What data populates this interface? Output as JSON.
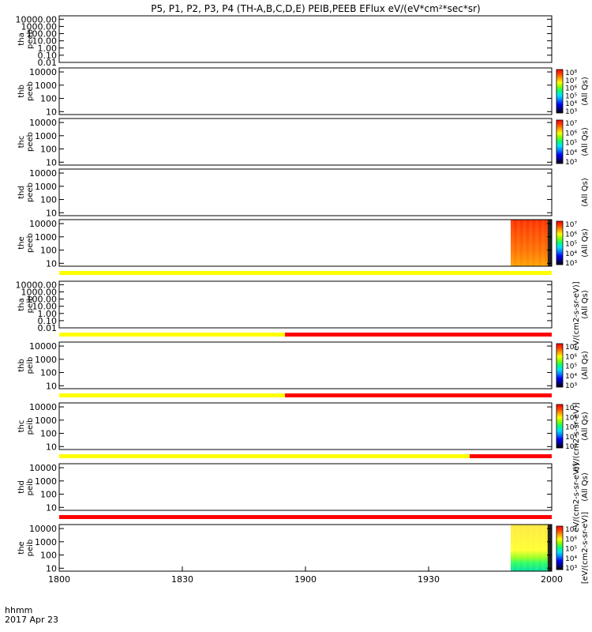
{
  "chart_data": {
    "type": "heatmap",
    "title": "P5, P1, P2, P3, P4 (TH-A,B,C,D,E) PEIB,PEEB EFlux eV/(eV*cm²*sec*sr)",
    "date_label": "2017 Apr 23",
    "time_label": "hhmm",
    "x_ticks": [
      "1800",
      "1830",
      "1900",
      "1930",
      "2000"
    ],
    "xlim": [
      "18:00",
      "20:00"
    ],
    "yscale": "log",
    "colors": {
      "yellow": "#ffff00",
      "red": "#ff0000",
      "orange": "#ff8c00",
      "green": "#30d060"
    },
    "panels": [
      {
        "name": "tha peeb",
        "line1": "tha",
        "line2": "peeb",
        "ylim": [
          0.01,
          30000
        ],
        "y_ticks": [
          "10000.00",
          "1000.00",
          "100.00",
          "10.00",
          "1.00",
          "0.10",
          "0.01"
        ],
        "has_colorbar": false,
        "has_data": false
      },
      {
        "name": "thb peeb",
        "line1": "thb",
        "line2": "peeb",
        "ylim": [
          6,
          20000
        ],
        "y_ticks": [
          "10000",
          "1000",
          "100",
          "10"
        ],
        "has_colorbar": true,
        "cbar_ticks": [
          "10⁸",
          "10⁷",
          "10⁶",
          "10⁵",
          "10⁴",
          "10³"
        ],
        "cbar_label": "(All Qs)",
        "has_data": false
      },
      {
        "name": "thc peeb",
        "line1": "thc",
        "line2": "peeb",
        "ylim": [
          6,
          20000
        ],
        "y_ticks": [
          "10000",
          "1000",
          "100",
          "10"
        ],
        "has_colorbar": true,
        "cbar_ticks": [
          "10⁷",
          "10⁶",
          "10⁵",
          "10⁴",
          "10³"
        ],
        "cbar_label": "(All Qs)",
        "has_data": false
      },
      {
        "name": "thd peeb",
        "line1": "thd",
        "line2": "peeb",
        "ylim": [
          6,
          20000
        ],
        "y_ticks": [
          "10000",
          "1000",
          "100",
          "10"
        ],
        "has_colorbar": false,
        "cbar_label": "(All Qs)",
        "has_data": false
      },
      {
        "name": "the peeb",
        "line1": "the",
        "line2": "peeb",
        "ylim": [
          6,
          20000
        ],
        "y_ticks": [
          "10000",
          "1000",
          "100",
          "10"
        ],
        "has_colorbar": true,
        "cbar_ticks": [
          "10⁷",
          "10⁶",
          "10⁵",
          "10⁴",
          "10³"
        ],
        "cbar_label": "(All Qs)",
        "has_data": true,
        "data_start": "19:50",
        "data_end": "19:59",
        "data_colors": "orange-red",
        "flag_bar": [
          {
            "from": "18:00",
            "to": "20:00",
            "color": "yellow"
          }
        ]
      },
      {
        "name": "tha peib",
        "line1": "tha",
        "line2": "peib",
        "ylim": [
          0.01,
          30000
        ],
        "y_ticks": [
          "10000.00",
          "1000.00",
          "100.00",
          "10.00",
          "1.00",
          "0.10",
          "0.01"
        ],
        "has_colorbar": false,
        "cbar_label": "(All Qs)",
        "has_data": false,
        "flag_bar": [
          {
            "from": "18:00",
            "to": "18:55",
            "color": "yellow"
          },
          {
            "from": "18:55",
            "to": "20:00",
            "color": "red"
          }
        ]
      },
      {
        "name": "thb peib",
        "line1": "thb",
        "line2": "peib",
        "ylim": [
          6,
          20000
        ],
        "y_ticks": [
          "10000",
          "1000",
          "100",
          "10"
        ],
        "has_colorbar": true,
        "cbar_ticks": [
          "10⁷",
          "10⁶",
          "10⁵",
          "10⁴",
          "10³"
        ],
        "cbar_label": "(All Qs)",
        "has_data": false,
        "flag_bar": [
          {
            "from": "18:00",
            "to": "18:55",
            "color": "yellow"
          },
          {
            "from": "18:55",
            "to": "20:00",
            "color": "red"
          }
        ]
      },
      {
        "name": "thc peib",
        "line1": "thc",
        "line2": "peib",
        "ylim": [
          6,
          20000
        ],
        "y_ticks": [
          "10000",
          "1000",
          "100",
          "10"
        ],
        "has_colorbar": true,
        "cbar_ticks": [
          "10⁷",
          "10⁶",
          "10⁵",
          "10⁴",
          "10³"
        ],
        "cbar_label": "(All Qs)",
        "has_data": false,
        "flag_bar": [
          {
            "from": "18:00",
            "to": "19:40",
            "color": "yellow"
          },
          {
            "from": "19:40",
            "to": "20:00",
            "color": "red"
          }
        ]
      },
      {
        "name": "thd peib",
        "line1": "thd",
        "line2": "peib",
        "ylim": [
          6,
          20000
        ],
        "y_ticks": [
          "10000",
          "1000",
          "100",
          "10"
        ],
        "has_colorbar": false,
        "cbar_label": "(All Qs)",
        "has_data": false,
        "flag_bar": [
          {
            "from": "18:00",
            "to": "20:00",
            "color": "red"
          }
        ]
      },
      {
        "name": "the peib",
        "line1": "the",
        "line2": "peib",
        "ylim": [
          6,
          20000
        ],
        "y_ticks": [
          "10000",
          "1000",
          "100",
          "10"
        ],
        "has_colorbar": true,
        "cbar_ticks": [
          "10⁷",
          "10⁶",
          "10⁵",
          "10⁴",
          "10³"
        ],
        "cbar_label": "[eV/(cm2-s-sr-eV)]",
        "has_data": true,
        "data_start": "19:50",
        "data_end": "19:59",
        "data_colors": "yellow-green"
      }
    ],
    "colorbar_label": "[eV/(cm2-s-sr-eV)]",
    "cbar_mid_labels": [
      "eV/(cm2-s-sr-eV)]",
      "eV/(cm2-s-sr-eV)]",
      "eV/(cm2-s-sr-eV)]"
    ]
  }
}
